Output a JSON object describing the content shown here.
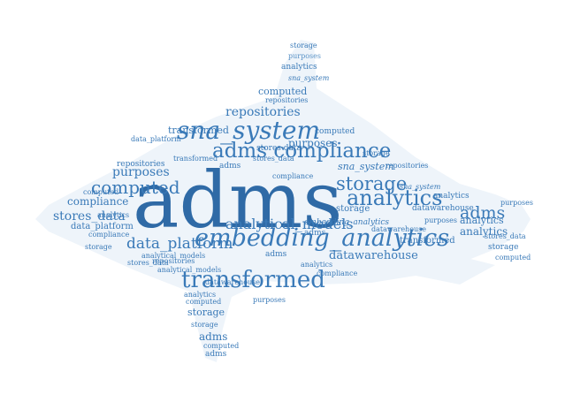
{
  "colors": {
    "primary": "#3a7ab8",
    "light": "#5b93c7",
    "dark": "#2f6aa6",
    "shape_fill": "#eef4fa"
  },
  "words": {
    "w0": "adms",
    "w1": "embedding_analytics",
    "w2": "sna_system",
    "w3": "transformed",
    "w4": "adms compliance",
    "w5": "analytics",
    "w6": "computed",
    "w7": "storage",
    "w8": "analytical_models",
    "w9": "data_platform",
    "w10": "repositories",
    "w11": "purposes",
    "w12": "adms",
    "w13": "datawarehouse",
    "w14": "stores_data",
    "w15": "compliance",
    "w16": "analytics",
    "w17": "sna_system",
    "w18": "storage",
    "w19": "purposes",
    "w20": "repositories",
    "w21": "stores_data",
    "w22": "computed",
    "w23": "storage",
    "w24": "purposes",
    "w25": "analytics",
    "w26": "sna_system",
    "w27": "computed",
    "w28": "repositories",
    "w29": "transformed",
    "w30": "stores data",
    "w31": "compliance",
    "w32": "data_platform",
    "w33": "analytics",
    "w34": "purposes",
    "w35": "analytics",
    "w36": "transformed",
    "w37": "datawarehouse",
    "w38": "storage",
    "w39": "stores_data",
    "w40": "storage",
    "w41": "adms",
    "w42": "computed",
    "w43": "adms",
    "w44": "storage",
    "w45": "analytics",
    "w46": "analytical_models",
    "w47": "repositories",
    "w48": "datawarehouse",
    "w49": "data_platform",
    "w50": "compliance",
    "w51": "purposes",
    "w52": "computed",
    "w53": "embedding_analytics",
    "w54": "sna_system",
    "w55": "adms",
    "w56": "analytics",
    "w57": "transformed",
    "w58": "computed",
    "w59": "adms",
    "w60": "stores_data",
    "w61": "analytical_models",
    "w62": "storage",
    "w63": "repositories",
    "w64": "computed",
    "w65": "compliance",
    "w66": "purposes",
    "w67": "datawarehouse",
    "w68": "analytics",
    "w69": "storage",
    "w70": "adms"
  }
}
